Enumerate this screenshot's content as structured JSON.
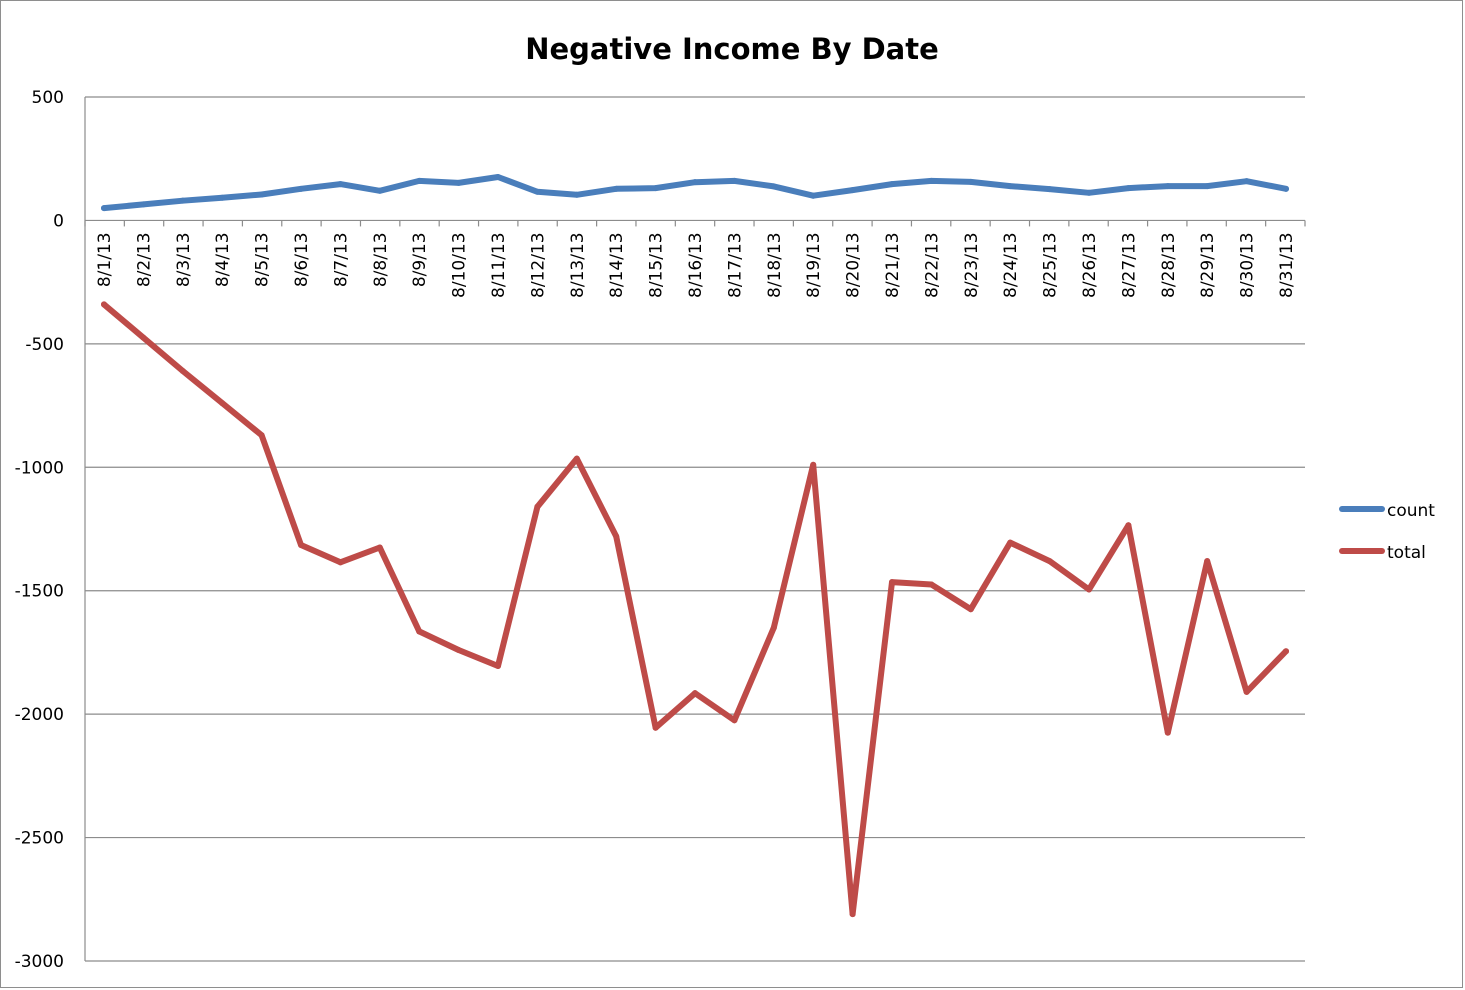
{
  "chart_data": {
    "type": "line",
    "title": "Negative Income By Date",
    "xlabel": "",
    "ylabel": "",
    "ylim": [
      -3000,
      500
    ],
    "y_ticks": [
      "500",
      "0",
      "-500",
      "-1000",
      "-1500",
      "-2000",
      "-2500",
      "-3000"
    ],
    "y_tick_values": [
      500,
      0,
      -500,
      -1000,
      -1500,
      -2000,
      -2500,
      -3000
    ],
    "grid": true,
    "legend_position": "right",
    "categories": [
      "8/1/13",
      "8/2/13",
      "8/3/13",
      "8/4/13",
      "8/5/13",
      "8/6/13",
      "8/7/13",
      "8/8/13",
      "8/9/13",
      "8/10/13",
      "8/11/13",
      "8/12/13",
      "8/13/13",
      "8/14/13",
      "8/15/13",
      "8/16/13",
      "8/17/13",
      "8/18/13",
      "8/19/13",
      "8/20/13",
      "8/21/13",
      "8/22/13",
      "8/23/13",
      "8/24/13",
      "8/25/13",
      "8/26/13",
      "8/27/13",
      "8/28/13",
      "8/29/13",
      "8/30/13",
      "8/31/13"
    ],
    "series": [
      {
        "name": "count",
        "color": "#4a7ebb",
        "values": [
          50,
          65,
          80,
          92,
          105,
          128,
          147,
          120,
          160,
          152,
          176,
          116,
          104,
          128,
          131,
          155,
          160,
          138,
          100,
          123,
          147,
          160,
          156,
          139,
          127,
          112,
          131,
          139,
          139,
          159,
          128
        ]
      },
      {
        "name": "total",
        "color": "#be4b48",
        "values": [
          -340,
          -475,
          -610,
          -740,
          -870,
          -1315,
          -1385,
          -1325,
          -1665,
          -1740,
          -1805,
          -1160,
          -965,
          -1280,
          -2055,
          -1915,
          -2025,
          -1650,
          -990,
          -2810,
          -1465,
          -1475,
          -1575,
          -1305,
          -1380,
          -1495,
          -1235,
          -2075,
          -1380,
          -1910,
          -1745
        ]
      }
    ]
  }
}
